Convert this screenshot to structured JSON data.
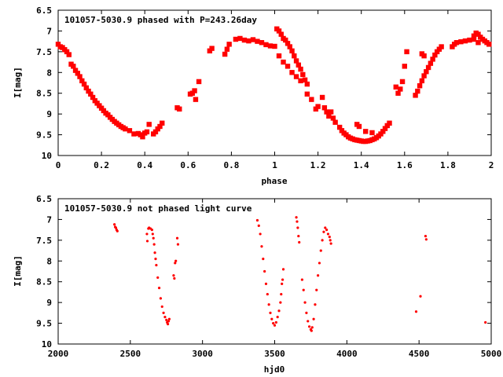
{
  "colors": {
    "points": "#ff0000",
    "axes": "#000000",
    "background": "#ffffff"
  },
  "chart_data": [
    {
      "type": "scatter",
      "title": "101057-5030.9 phased with P=243.26day",
      "xlabel": "phase",
      "ylabel": "I[mag]",
      "xlim": [
        0,
        2
      ],
      "ylim": [
        6.5,
        10
      ],
      "y_inverted": true,
      "grid": false,
      "x_ticks": [
        0,
        0.2,
        0.4,
        0.6,
        0.8,
        1,
        1.2,
        1.4,
        1.6,
        1.8,
        2
      ],
      "x_tick_labels": [
        "0",
        "0.2",
        "0.4",
        "0.6",
        "0.8",
        "1",
        "1.2",
        "1.4",
        "1.6",
        "1.8",
        "2"
      ],
      "y_ticks": [
        6.5,
        7,
        7.5,
        8,
        8.5,
        9,
        9.5,
        10
      ],
      "y_tick_labels": [
        "6.5",
        "7",
        "7.5",
        "8",
        "8.5",
        "9",
        "9.5",
        "10"
      ],
      "points": [
        [
          0.0,
          7.32
        ],
        [
          0.01,
          7.38
        ],
        [
          0.02,
          7.4
        ],
        [
          0.03,
          7.45
        ],
        [
          0.04,
          7.5
        ],
        [
          0.05,
          7.57
        ],
        [
          0.06,
          7.8
        ],
        [
          0.07,
          7.85
        ],
        [
          0.08,
          7.95
        ],
        [
          0.09,
          8.02
        ],
        [
          0.1,
          8.1
        ],
        [
          0.11,
          8.2
        ],
        [
          0.12,
          8.28
        ],
        [
          0.13,
          8.37
        ],
        [
          0.14,
          8.45
        ],
        [
          0.15,
          8.52
        ],
        [
          0.16,
          8.6
        ],
        [
          0.17,
          8.68
        ],
        [
          0.18,
          8.74
        ],
        [
          0.19,
          8.8
        ],
        [
          0.2,
          8.86
        ],
        [
          0.21,
          8.92
        ],
        [
          0.22,
          8.98
        ],
        [
          0.23,
          9.02
        ],
        [
          0.24,
          9.08
        ],
        [
          0.25,
          9.13
        ],
        [
          0.26,
          9.18
        ],
        [
          0.27,
          9.22
        ],
        [
          0.28,
          9.26
        ],
        [
          0.29,
          9.3
        ],
        [
          0.3,
          9.33
        ],
        [
          0.31,
          9.36
        ],
        [
          0.33,
          9.4
        ],
        [
          0.35,
          9.48
        ],
        [
          0.37,
          9.47
        ],
        [
          0.38,
          9.5
        ],
        [
          0.39,
          9.55
        ],
        [
          0.4,
          9.46
        ],
        [
          0.41,
          9.43
        ],
        [
          0.42,
          9.25
        ],
        [
          0.44,
          9.48
        ],
        [
          0.45,
          9.43
        ],
        [
          0.46,
          9.36
        ],
        [
          0.47,
          9.3
        ],
        [
          0.48,
          9.22
        ],
        [
          0.55,
          8.85
        ],
        [
          0.56,
          8.88
        ],
        [
          0.61,
          8.52
        ],
        [
          0.62,
          8.5
        ],
        [
          0.63,
          8.44
        ],
        [
          0.635,
          8.65
        ],
        [
          0.65,
          8.22
        ],
        [
          0.7,
          7.48
        ],
        [
          0.71,
          7.42
        ],
        [
          0.77,
          7.56
        ],
        [
          0.78,
          7.44
        ],
        [
          0.79,
          7.32
        ],
        [
          0.82,
          7.2
        ],
        [
          0.84,
          7.18
        ],
        [
          0.86,
          7.22
        ],
        [
          0.88,
          7.24
        ],
        [
          0.9,
          7.21
        ],
        [
          0.92,
          7.25
        ],
        [
          0.94,
          7.28
        ],
        [
          0.96,
          7.33
        ],
        [
          0.98,
          7.36
        ],
        [
          1.0,
          7.37
        ],
        [
          1.01,
          6.95
        ],
        [
          1.02,
          7.0
        ],
        [
          1.03,
          7.08
        ],
        [
          1.04,
          7.18
        ],
        [
          1.05,
          7.22
        ],
        [
          1.06,
          7.3
        ],
        [
          1.07,
          7.38
        ],
        [
          1.08,
          7.48
        ],
        [
          1.09,
          7.6
        ],
        [
          1.1,
          7.72
        ],
        [
          1.11,
          7.82
        ],
        [
          1.12,
          7.92
        ],
        [
          1.13,
          8.05
        ],
        [
          1.14,
          8.18
        ],
        [
          1.15,
          8.28
        ],
        [
          1.02,
          7.6
        ],
        [
          1.04,
          7.75
        ],
        [
          1.06,
          7.85
        ],
        [
          1.08,
          8.0
        ],
        [
          1.1,
          8.1
        ],
        [
          1.12,
          8.2
        ],
        [
          1.15,
          8.52
        ],
        [
          1.17,
          8.65
        ],
        [
          1.19,
          8.88
        ],
        [
          1.2,
          8.82
        ],
        [
          1.22,
          8.6
        ],
        [
          1.23,
          8.85
        ],
        [
          1.24,
          8.95
        ],
        [
          1.25,
          9.05
        ],
        [
          1.26,
          8.95
        ],
        [
          1.27,
          9.1
        ],
        [
          1.28,
          9.2
        ],
        [
          1.3,
          9.32
        ],
        [
          1.31,
          9.4
        ],
        [
          1.32,
          9.46
        ],
        [
          1.33,
          9.5
        ],
        [
          1.34,
          9.55
        ],
        [
          1.35,
          9.58
        ],
        [
          1.36,
          9.6
        ],
        [
          1.37,
          9.62
        ],
        [
          1.38,
          9.63
        ],
        [
          1.39,
          9.64
        ],
        [
          1.4,
          9.65
        ],
        [
          1.41,
          9.66
        ],
        [
          1.42,
          9.66
        ],
        [
          1.43,
          9.65
        ],
        [
          1.44,
          9.64
        ],
        [
          1.45,
          9.62
        ],
        [
          1.46,
          9.6
        ],
        [
          1.47,
          9.57
        ],
        [
          1.48,
          9.53
        ],
        [
          1.49,
          9.48
        ],
        [
          1.5,
          9.42
        ],
        [
          1.51,
          9.35
        ],
        [
          1.52,
          9.28
        ],
        [
          1.53,
          9.22
        ],
        [
          1.38,
          9.25
        ],
        [
          1.39,
          9.3
        ],
        [
          1.42,
          9.42
        ],
        [
          1.45,
          9.45
        ],
        [
          1.56,
          8.35
        ],
        [
          1.57,
          8.5
        ],
        [
          1.58,
          8.4
        ],
        [
          1.59,
          8.22
        ],
        [
          1.6,
          7.85
        ],
        [
          1.61,
          7.5
        ],
        [
          1.65,
          8.55
        ],
        [
          1.66,
          8.45
        ],
        [
          1.67,
          8.32
        ],
        [
          1.68,
          8.2
        ],
        [
          1.69,
          8.08
        ],
        [
          1.7,
          7.98
        ],
        [
          1.71,
          7.88
        ],
        [
          1.72,
          7.78
        ],
        [
          1.73,
          7.68
        ],
        [
          1.74,
          7.58
        ],
        [
          1.75,
          7.5
        ],
        [
          1.76,
          7.44
        ],
        [
          1.77,
          7.38
        ],
        [
          1.68,
          7.55
        ],
        [
          1.69,
          7.6
        ],
        [
          1.82,
          7.38
        ],
        [
          1.83,
          7.32
        ],
        [
          1.84,
          7.28
        ],
        [
          1.86,
          7.26
        ],
        [
          1.88,
          7.24
        ],
        [
          1.9,
          7.22
        ],
        [
          1.92,
          7.12
        ],
        [
          1.93,
          7.05
        ],
        [
          1.94,
          7.08
        ],
        [
          1.95,
          7.15
        ],
        [
          1.96,
          7.2
        ],
        [
          1.97,
          7.24
        ],
        [
          1.98,
          7.28
        ],
        [
          1.99,
          7.32
        ],
        [
          1.92,
          7.2
        ],
        [
          1.94,
          7.28
        ]
      ]
    },
    {
      "type": "scatter",
      "title": "101057-5030.9 not phased light curve",
      "xlabel": "hjd0",
      "ylabel": "I[mag]",
      "xlim": [
        2000,
        5000
      ],
      "ylim": [
        6.5,
        10
      ],
      "y_inverted": true,
      "grid": false,
      "x_ticks": [
        2000,
        2500,
        3000,
        3500,
        4000,
        4500,
        5000
      ],
      "x_tick_labels": [
        "2000",
        "2500",
        "3000",
        "3500",
        "4000",
        "4500",
        "5000"
      ],
      "y_ticks": [
        6.5,
        7,
        7.5,
        8,
        8.5,
        9,
        9.5,
        10
      ],
      "y_tick_labels": [
        "6.5",
        "7",
        "7.5",
        "8",
        "8.5",
        "9",
        "9.5",
        "10"
      ],
      "points": [
        [
          2390,
          7.12
        ],
        [
          2395,
          7.18
        ],
        [
          2400,
          7.2
        ],
        [
          2405,
          7.25
        ],
        [
          2410,
          7.28
        ],
        [
          2615,
          7.35
        ],
        [
          2618,
          7.52
        ],
        [
          2625,
          7.22
        ],
        [
          2630,
          7.2
        ],
        [
          2640,
          7.22
        ],
        [
          2650,
          7.25
        ],
        [
          2655,
          7.35
        ],
        [
          2660,
          7.45
        ],
        [
          2665,
          7.6
        ],
        [
          2670,
          7.8
        ],
        [
          2675,
          7.95
        ],
        [
          2680,
          8.1
        ],
        [
          2690,
          8.4
        ],
        [
          2700,
          8.65
        ],
        [
          2710,
          8.9
        ],
        [
          2720,
          9.1
        ],
        [
          2730,
          9.25
        ],
        [
          2740,
          9.35
        ],
        [
          2750,
          9.42
        ],
        [
          2755,
          9.48
        ],
        [
          2760,
          9.52
        ],
        [
          2765,
          9.45
        ],
        [
          2770,
          9.4
        ],
        [
          2800,
          8.35
        ],
        [
          2805,
          8.42
        ],
        [
          2810,
          8.05
        ],
        [
          2815,
          8.0
        ],
        [
          2825,
          7.45
        ],
        [
          2830,
          7.6
        ],
        [
          3380,
          7.02
        ],
        [
          3390,
          7.15
        ],
        [
          3400,
          7.35
        ],
        [
          3410,
          7.65
        ],
        [
          3420,
          7.95
        ],
        [
          3430,
          8.25
        ],
        [
          3440,
          8.55
        ],
        [
          3450,
          8.8
        ],
        [
          3460,
          9.05
        ],
        [
          3470,
          9.25
        ],
        [
          3480,
          9.4
        ],
        [
          3490,
          9.5
        ],
        [
          3500,
          9.55
        ],
        [
          3510,
          9.48
        ],
        [
          3520,
          9.35
        ],
        [
          3530,
          9.2
        ],
        [
          3540,
          9.0
        ],
        [
          3545,
          8.8
        ],
        [
          3550,
          8.55
        ],
        [
          3555,
          8.45
        ],
        [
          3560,
          8.2
        ],
        [
          3650,
          6.95
        ],
        [
          3655,
          7.05
        ],
        [
          3660,
          7.2
        ],
        [
          3665,
          7.4
        ],
        [
          3670,
          7.55
        ],
        [
          3690,
          8.45
        ],
        [
          3700,
          8.7
        ],
        [
          3710,
          9.0
        ],
        [
          3720,
          9.25
        ],
        [
          3730,
          9.45
        ],
        [
          3740,
          9.58
        ],
        [
          3750,
          9.65
        ],
        [
          3755,
          9.68
        ],
        [
          3760,
          9.6
        ],
        [
          3770,
          9.4
        ],
        [
          3780,
          9.05
        ],
        [
          3790,
          8.7
        ],
        [
          3800,
          8.35
        ],
        [
          3810,
          8.05
        ],
        [
          3820,
          7.75
        ],
        [
          3830,
          7.5
        ],
        [
          3840,
          7.3
        ],
        [
          3850,
          7.2
        ],
        [
          3860,
          7.25
        ],
        [
          3870,
          7.35
        ],
        [
          3880,
          7.42
        ],
        [
          3885,
          7.5
        ],
        [
          3890,
          7.58
        ],
        [
          4480,
          9.22
        ],
        [
          4510,
          8.85
        ],
        [
          4545,
          7.4
        ],
        [
          4550,
          7.48
        ],
        [
          4960,
          9.48
        ]
      ]
    }
  ]
}
